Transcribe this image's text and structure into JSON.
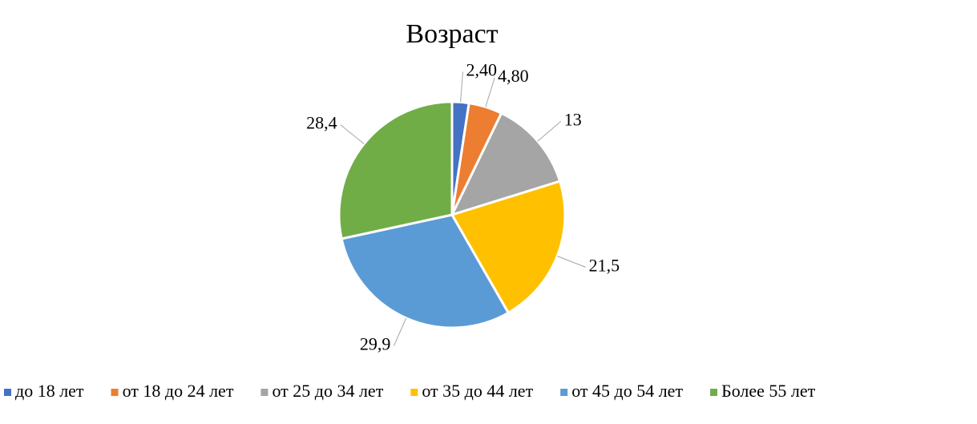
{
  "chart_data": {
    "type": "pie",
    "title": "Возраст",
    "categories": [
      "до 18 лет",
      "от 18 до 24 лет",
      "от 25 до 34 лет",
      "от 35 до 44 лет",
      "от 45 до 54 лет",
      "Более 55 лет"
    ],
    "values": [
      2.4,
      4.8,
      13,
      21.5,
      29.9,
      28.4
    ],
    "value_labels": [
      "2,40",
      "4,80",
      "13",
      "21,5",
      "29,9",
      "28,4"
    ],
    "colors": [
      "#4472c4",
      "#ed7d31",
      "#a5a5a5",
      "#ffc000",
      "#5b9bd5",
      "#70ad47"
    ],
    "legend": "bottom"
  }
}
